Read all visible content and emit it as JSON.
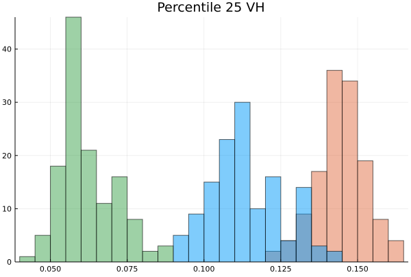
{
  "chart_data": {
    "type": "histogram",
    "title": "Percentile 25 VH",
    "xlabel": "",
    "ylabel": "",
    "xlim": [
      0.0385,
      0.1665
    ],
    "ylim": [
      0,
      46
    ],
    "grid": true,
    "legend": "none",
    "x_ticks": [
      {
        "value": 0.05,
        "label": "0.050"
      },
      {
        "value": 0.075,
        "label": "0.075"
      },
      {
        "value": 0.1,
        "label": "0.100"
      },
      {
        "value": 0.125,
        "label": "0.125"
      },
      {
        "value": 0.15,
        "label": "0.150"
      }
    ],
    "y_ticks": [
      {
        "value": 0,
        "label": "0"
      },
      {
        "value": 10,
        "label": "10"
      },
      {
        "value": 20,
        "label": "20"
      },
      {
        "value": 30,
        "label": "30"
      },
      {
        "value": 40,
        "label": "40"
      }
    ],
    "bin_width": 0.005,
    "series": [
      {
        "color": "#e26f46",
        "bins": [
          {
            "x0": 0.12,
            "x1": 0.125,
            "count": 2
          },
          {
            "x0": 0.125,
            "x1": 0.13,
            "count": 4
          },
          {
            "x0": 0.13,
            "x1": 0.135,
            "count": 9
          },
          {
            "x0": 0.135,
            "x1": 0.14,
            "count": 17
          },
          {
            "x0": 0.14,
            "x1": 0.145,
            "count": 36
          },
          {
            "x0": 0.145,
            "x1": 0.15,
            "count": 34
          },
          {
            "x0": 0.15,
            "x1": 0.155,
            "count": 19
          },
          {
            "x0": 0.155,
            "x1": 0.16,
            "count": 8
          },
          {
            "x0": 0.16,
            "x1": 0.165,
            "count": 4
          }
        ]
      },
      {
        "color": "#009af9",
        "bins": [
          {
            "x0": 0.09,
            "x1": 0.095,
            "count": 5
          },
          {
            "x0": 0.095,
            "x1": 0.1,
            "count": 9
          },
          {
            "x0": 0.1,
            "x1": 0.105,
            "count": 15
          },
          {
            "x0": 0.105,
            "x1": 0.11,
            "count": 23
          },
          {
            "x0": 0.11,
            "x1": 0.115,
            "count": 30
          },
          {
            "x0": 0.115,
            "x1": 0.12,
            "count": 10
          },
          {
            "x0": 0.12,
            "x1": 0.125,
            "count": 16
          },
          {
            "x0": 0.125,
            "x1": 0.13,
            "count": 4
          },
          {
            "x0": 0.13,
            "x1": 0.135,
            "count": 14
          },
          {
            "x0": 0.135,
            "x1": 0.14,
            "count": 3
          },
          {
            "x0": 0.14,
            "x1": 0.145,
            "count": 2
          }
        ]
      },
      {
        "color": "#3da44d",
        "bins": [
          {
            "x0": 0.04,
            "x1": 0.045,
            "count": 1
          },
          {
            "x0": 0.045,
            "x1": 0.05,
            "count": 5
          },
          {
            "x0": 0.05,
            "x1": 0.055,
            "count": 18
          },
          {
            "x0": 0.055,
            "x1": 0.06,
            "count": 46
          },
          {
            "x0": 0.06,
            "x1": 0.065,
            "count": 21
          },
          {
            "x0": 0.065,
            "x1": 0.07,
            "count": 11
          },
          {
            "x0": 0.07,
            "x1": 0.075,
            "count": 16
          },
          {
            "x0": 0.075,
            "x1": 0.08,
            "count": 8
          },
          {
            "x0": 0.08,
            "x1": 0.085,
            "count": 2
          },
          {
            "x0": 0.085,
            "x1": 0.09,
            "count": 3
          }
        ]
      }
    ]
  }
}
